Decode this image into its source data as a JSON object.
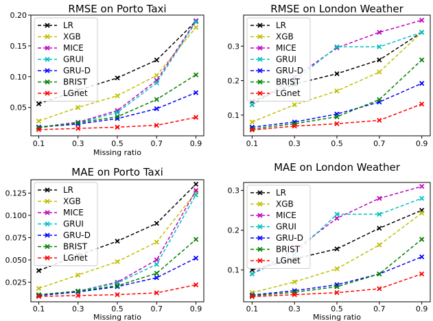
{
  "chart_data": [
    {
      "type": "line",
      "title": "RMSE on Porto Taxi",
      "xlabel": "Missing ratio",
      "ylabel": "",
      "x": [
        0.1,
        0.3,
        0.5,
        0.7,
        0.9
      ],
      "x_ticks": [
        "0.1",
        "0.3",
        "0.5",
        "0.7",
        "0.9"
      ],
      "xlim": [
        0.06,
        0.94
      ],
      "ylim": [
        0.004,
        0.2
      ],
      "y_ticks": [
        0.05,
        0.1,
        0.15,
        0.2
      ],
      "y_tick_labels": [
        "0.05",
        "0.10",
        "0.15",
        "0.20"
      ],
      "legend": "top-left",
      "series": [
        {
          "name": "LR",
          "color": "#000000",
          "values": [
            0.056,
            0.078,
            0.098,
            0.127,
            0.19
          ]
        },
        {
          "name": "XGB",
          "color": "#bfbf00",
          "values": [
            0.028,
            0.05,
            0.069,
            0.102,
            0.18
          ]
        },
        {
          "name": "MICE",
          "color": "#bf00bf",
          "values": [
            0.018,
            0.026,
            0.045,
            0.094,
            0.191
          ]
        },
        {
          "name": "GRUI",
          "color": "#00bfbf",
          "values": [
            0.018,
            0.025,
            0.042,
            0.09,
            0.189
          ]
        },
        {
          "name": "GRU-D",
          "color": "#0000ff",
          "values": [
            0.018,
            0.023,
            0.032,
            0.048,
            0.074
          ]
        },
        {
          "name": "BRIST",
          "color": "#008000",
          "values": [
            0.017,
            0.025,
            0.035,
            0.063,
            0.103
          ]
        },
        {
          "name": "LGnet",
          "color": "#ff0000",
          "values": [
            0.014,
            0.016,
            0.018,
            0.021,
            0.034
          ]
        }
      ]
    },
    {
      "type": "line",
      "title": "RMSE on London Weather",
      "xlabel": "",
      "ylabel": "",
      "x": [
        0.1,
        0.3,
        0.5,
        0.7,
        0.9
      ],
      "x_ticks": [
        "0.1",
        "0.3",
        "0.5",
        "0.7",
        "0.9"
      ],
      "xlim": [
        0.06,
        0.94
      ],
      "ylim": [
        0.04,
        0.39
      ],
      "y_ticks": [
        0.1,
        0.2,
        0.3
      ],
      "y_tick_labels": [
        "0.1",
        "0.2",
        "0.3"
      ],
      "legend": "top-left",
      "series": [
        {
          "name": "LR",
          "color": "#000000",
          "values": [
            0.14,
            0.19,
            0.22,
            0.26,
            0.34
          ]
        },
        {
          "name": "XGB",
          "color": "#bfbf00",
          "values": [
            0.08,
            0.13,
            0.17,
            0.225,
            0.34
          ]
        },
        {
          "name": "MICE",
          "color": "#bf00bf",
          "values": [
            0.13,
            0.21,
            0.295,
            0.34,
            0.375
          ]
        },
        {
          "name": "GRUI",
          "color": "#00bfbf",
          "values": [
            0.13,
            0.2,
            0.298,
            0.298,
            0.34
          ]
        },
        {
          "name": "GRU-D",
          "color": "#0000ff",
          "values": [
            0.065,
            0.08,
            0.103,
            0.138,
            0.192
          ]
        },
        {
          "name": "BRIST",
          "color": "#008000",
          "values": [
            0.06,
            0.075,
            0.095,
            0.145,
            0.26
          ]
        },
        {
          "name": "LGnet",
          "color": "#ff0000",
          "values": [
            0.057,
            0.068,
            0.075,
            0.085,
            0.132
          ]
        }
      ]
    },
    {
      "type": "line",
      "title": "MAE on Porto Taxi",
      "xlabel": "Missing ratio",
      "ylabel": "",
      "x": [
        0.1,
        0.3,
        0.5,
        0.7,
        0.9
      ],
      "x_ticks": [
        "0.1",
        "0.3",
        "0.5",
        "0.7",
        "0.9"
      ],
      "xlim": [
        0.06,
        0.94
      ],
      "ylim": [
        0.003,
        0.14
      ],
      "y_ticks": [
        0.025,
        0.05,
        0.075,
        0.1,
        0.125
      ],
      "y_tick_labels": [
        "0.025",
        "0.050",
        "0.075",
        "0.100",
        "0.125"
      ],
      "legend": "top-left",
      "series": [
        {
          "name": "LR",
          "color": "#000000",
          "values": [
            0.038,
            0.055,
            0.071,
            0.091,
            0.135
          ]
        },
        {
          "name": "XGB",
          "color": "#bfbf00",
          "values": [
            0.018,
            0.033,
            0.048,
            0.07,
            0.126
          ]
        },
        {
          "name": "MICE",
          "color": "#bf00bf",
          "values": [
            0.01,
            0.015,
            0.025,
            0.05,
            0.128
          ]
        },
        {
          "name": "GRUI",
          "color": "#00bfbf",
          "values": [
            0.01,
            0.015,
            0.024,
            0.045,
            0.123
          ]
        },
        {
          "name": "GRU-D",
          "color": "#0000ff",
          "values": [
            0.01,
            0.014,
            0.02,
            0.03,
            0.052
          ]
        },
        {
          "name": "BRIST",
          "color": "#008000",
          "values": [
            0.011,
            0.015,
            0.021,
            0.035,
            0.073
          ]
        },
        {
          "name": "LGnet",
          "color": "#ff0000",
          "values": [
            0.009,
            0.01,
            0.011,
            0.013,
            0.022
          ]
        }
      ]
    },
    {
      "type": "line",
      "title": "MAE on London Weather",
      "xlabel": "Missing ratio",
      "ylabel": "",
      "x": [
        0.1,
        0.3,
        0.5,
        0.7,
        0.9
      ],
      "x_ticks": [
        "0.1",
        "0.3",
        "0.5",
        "0.7",
        "0.9"
      ],
      "xlim": [
        0.06,
        0.94
      ],
      "ylim": [
        0.02,
        0.32
      ],
      "y_ticks": [
        0.1,
        0.2,
        0.3
      ],
      "y_tick_labels": [
        "0.1",
        "0.2",
        "0.3"
      ],
      "legend": "top-left",
      "series": [
        {
          "name": "LR",
          "color": "#000000",
          "values": [
            0.1,
            0.128,
            0.153,
            0.205,
            0.25
          ]
        },
        {
          "name": "XGB",
          "color": "#bfbf00",
          "values": [
            0.043,
            0.07,
            0.103,
            0.163,
            0.243
          ]
        },
        {
          "name": "MICE",
          "color": "#bf00bf",
          "values": [
            0.09,
            0.15,
            0.23,
            0.28,
            0.31
          ]
        },
        {
          "name": "GRUI",
          "color": "#00bfbf",
          "values": [
            0.09,
            0.14,
            0.24,
            0.24,
            0.28
          ]
        },
        {
          "name": "GRU-D",
          "color": "#0000ff",
          "values": [
            0.037,
            0.048,
            0.063,
            0.09,
            0.133
          ]
        },
        {
          "name": "BRIST",
          "color": "#008000",
          "values": [
            0.035,
            0.044,
            0.058,
            0.09,
            0.177
          ]
        },
        {
          "name": "LGnet",
          "color": "#ff0000",
          "values": [
            0.033,
            0.038,
            0.043,
            0.053,
            0.09
          ]
        }
      ]
    }
  ]
}
